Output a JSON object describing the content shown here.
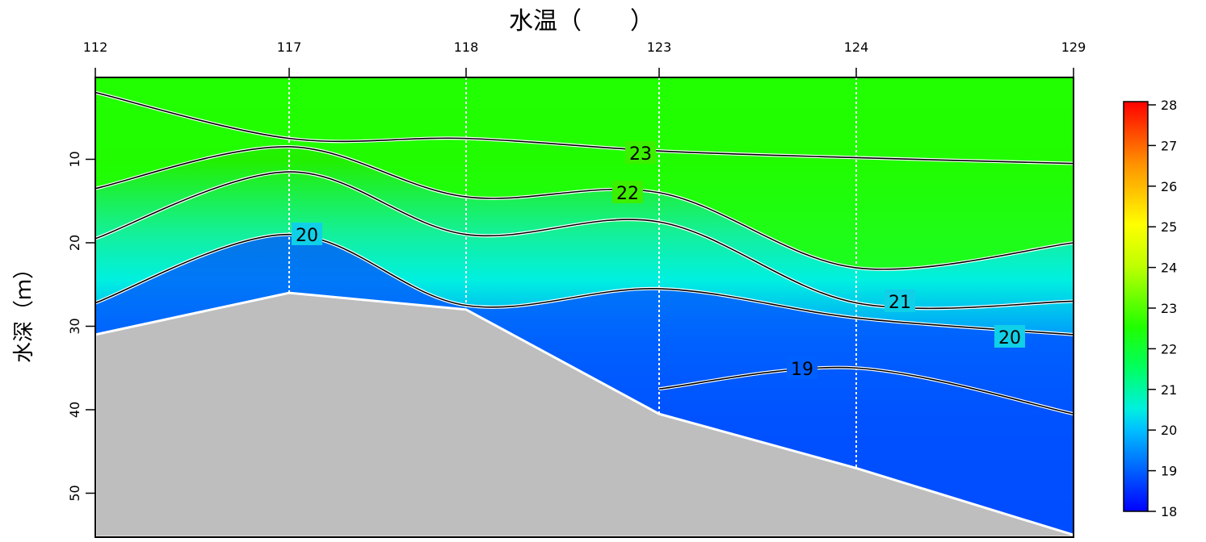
{
  "chart_data": {
    "type": "heatmap",
    "title": "水温（　　）",
    "ylabel": "水深（ｍ）",
    "x_stations": [
      "112",
      "117",
      "118",
      "123",
      "124",
      "129"
    ],
    "y_ticks": [
      10,
      20,
      30,
      40,
      50
    ],
    "ylim": [
      0,
      55
    ],
    "colorbar": {
      "min": 18,
      "max": 28,
      "ticks": [
        18,
        19,
        20,
        21,
        22,
        23,
        24,
        25,
        26,
        27,
        28
      ]
    },
    "grid": false,
    "legend": "colorbar-right",
    "bottom_depth_m": [
      31,
      26,
      28,
      40.5,
      47,
      55
    ],
    "isotherms": [
      {
        "level": 23,
        "label": "23",
        "depths": [
          2,
          7.5,
          7.5,
          9,
          9.8,
          10.5
        ]
      },
      {
        "level": 22,
        "label": "22",
        "depths": [
          13.5,
          8.5,
          14.5,
          14,
          23,
          20
        ]
      },
      {
        "level": 21,
        "label": "21",
        "depths": [
          19.5,
          11.5,
          19,
          17.5,
          27.2,
          27
        ]
      },
      {
        "level": 20,
        "label": "20",
        "depths": [
          27.2,
          19,
          27.5,
          25.5,
          29,
          31
        ]
      },
      {
        "level": 19,
        "label": "19",
        "depths": [
          null,
          null,
          null,
          37.5,
          35,
          40.5
        ]
      }
    ],
    "colors": {
      "warm_surface": "#21ff00",
      "mid": "#00f0e0",
      "cold_deep": "#0050ff",
      "seabed": "#bebebe"
    }
  }
}
